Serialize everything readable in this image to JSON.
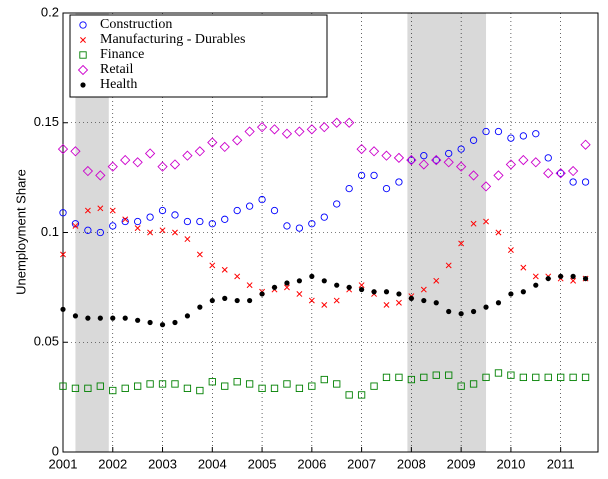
{
  "chart_data": {
    "type": "scatter",
    "y_label": "Unemployment Share",
    "x": [
      2001,
      2001.25,
      2001.5,
      2001.75,
      2002,
      2002.25,
      2002.5,
      2002.75,
      2003,
      2003.25,
      2003.5,
      2003.75,
      2004,
      2004.25,
      2004.5,
      2004.75,
      2005,
      2005.25,
      2005.5,
      2005.75,
      2006,
      2006.25,
      2006.5,
      2006.75,
      2007,
      2007.25,
      2007.5,
      2007.75,
      2008,
      2008.25,
      2008.5,
      2008.75,
      2009,
      2009.25,
      2009.5,
      2009.75,
      2010,
      2010.25,
      2010.5,
      2010.75,
      2011,
      2011.25,
      2011.5
    ],
    "series": [
      {
        "name": "Construction",
        "color": "#0000ff",
        "marker": "circle",
        "values": [
          0.109,
          0.104,
          0.101,
          0.1,
          0.103,
          0.105,
          0.105,
          0.107,
          0.11,
          0.108,
          0.105,
          0.105,
          0.104,
          0.106,
          0.11,
          0.112,
          0.115,
          0.11,
          0.103,
          0.102,
          0.104,
          0.107,
          0.113,
          0.12,
          0.126,
          0.126,
          0.12,
          0.123,
          0.133,
          0.135,
          0.133,
          0.136,
          0.138,
          0.142,
          0.146,
          0.146,
          0.143,
          0.144,
          0.145,
          0.134,
          0.127,
          0.123,
          0.123
        ]
      },
      {
        "name": "Manufacturing - Durables",
        "color": "#ff0000",
        "marker": "x",
        "values": [
          0.09,
          0.103,
          0.11,
          0.111,
          0.11,
          0.106,
          0.102,
          0.1,
          0.101,
          0.1,
          0.097,
          0.09,
          0.085,
          0.083,
          0.08,
          0.076,
          0.073,
          0.074,
          0.075,
          0.072,
          0.069,
          0.067,
          0.069,
          0.074,
          0.076,
          0.072,
          0.067,
          0.068,
          0.071,
          0.074,
          0.078,
          0.085,
          0.095,
          0.104,
          0.105,
          0.1,
          0.092,
          0.084,
          0.08,
          0.08,
          0.079,
          0.078,
          0.079
        ]
      },
      {
        "name": "Finance",
        "color": "#008000",
        "marker": "square",
        "values": [
          0.03,
          0.029,
          0.029,
          0.03,
          0.028,
          0.029,
          0.03,
          0.031,
          0.031,
          0.031,
          0.029,
          0.028,
          0.032,
          0.03,
          0.032,
          0.031,
          0.029,
          0.029,
          0.031,
          0.029,
          0.03,
          0.033,
          0.031,
          0.026,
          0.026,
          0.03,
          0.034,
          0.034,
          0.033,
          0.034,
          0.035,
          0.035,
          0.03,
          0.031,
          0.034,
          0.036,
          0.035,
          0.034,
          0.034,
          0.034,
          0.034,
          0.034,
          0.034
        ]
      },
      {
        "name": "Retail",
        "color": "#cc00cc",
        "marker": "diamond",
        "values": [
          0.138,
          0.137,
          0.128,
          0.126,
          0.13,
          0.133,
          0.132,
          0.136,
          0.13,
          0.131,
          0.135,
          0.137,
          0.141,
          0.139,
          0.142,
          0.146,
          0.148,
          0.147,
          0.145,
          0.146,
          0.147,
          0.148,
          0.15,
          0.15,
          0.138,
          0.137,
          0.135,
          0.134,
          0.133,
          0.131,
          0.133,
          0.132,
          0.13,
          0.126,
          0.121,
          0.126,
          0.131,
          0.133,
          0.132,
          0.127,
          0.127,
          0.128,
          0.14
        ]
      },
      {
        "name": "Health",
        "color": "#000000",
        "marker": "dot",
        "values": [
          0.065,
          0.062,
          0.061,
          0.061,
          0.061,
          0.061,
          0.06,
          0.059,
          0.058,
          0.059,
          0.062,
          0.066,
          0.069,
          0.07,
          0.069,
          0.069,
          0.072,
          0.075,
          0.077,
          0.078,
          0.08,
          0.078,
          0.076,
          0.075,
          0.074,
          0.073,
          0.073,
          0.072,
          0.07,
          0.069,
          0.068,
          0.064,
          0.063,
          0.064,
          0.066,
          0.068,
          0.072,
          0.073,
          0.076,
          0.079,
          0.08,
          0.08,
          0.079
        ]
      }
    ],
    "shading": [
      [
        2001.25,
        2001.92
      ],
      [
        2007.92,
        2009.5
      ]
    ],
    "shading_color": "#d9d9d9",
    "xlim": [
      2001,
      2011.75
    ],
    "ylim": [
      0,
      0.2
    ],
    "xticks": [
      2001,
      2002,
      2003,
      2004,
      2005,
      2006,
      2007,
      2008,
      2009,
      2010,
      2011
    ],
    "yticks": [
      0,
      0.05,
      0.1,
      0.15,
      0.2
    ],
    "grid": true,
    "legend_position": "upper-left"
  }
}
